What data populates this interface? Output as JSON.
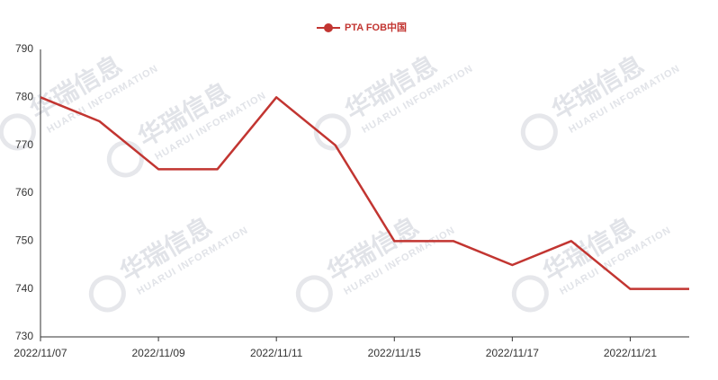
{
  "chart_data": {
    "type": "line",
    "categories": [
      "2022/11/07",
      null,
      "2022/11/09",
      null,
      "2022/11/11",
      null,
      "2022/11/15",
      null,
      "2022/11/17",
      null,
      "2022/11/21",
      null
    ],
    "series": [
      {
        "name": "PTA FOB中国",
        "color": "#c23531",
        "values": [
          780,
          775,
          765,
          765,
          780,
          770,
          750,
          750,
          745,
          750,
          740,
          740
        ]
      }
    ],
    "ylim": [
      730,
      790
    ],
    "yticks": [
      730,
      740,
      750,
      760,
      770,
      780,
      790
    ],
    "grid": false,
    "legend": "top",
    "watermark": "华瑞信息",
    "watermark_en": "HUARUI INFORMATION"
  }
}
